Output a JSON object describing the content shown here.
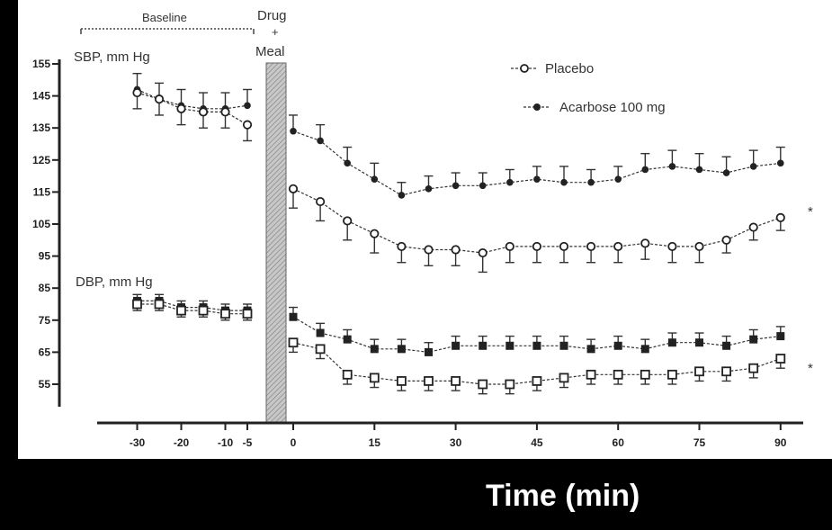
{
  "chart_data": {
    "type": "line",
    "title": "",
    "xlabel": "Time (min)",
    "ylabel": "",
    "x_ticks": [
      -30,
      -20,
      -10,
      -5,
      0,
      15,
      30,
      45,
      60,
      75,
      90
    ],
    "y_ticks": [
      55,
      65,
      75,
      85,
      95,
      105,
      115,
      125,
      135,
      145,
      155
    ],
    "ylim": [
      50,
      158
    ],
    "intervention_label_top": "Drug",
    "intervention_label_plus": "+",
    "intervention_label_bottom": "Meal",
    "baseline_label": "Baseline",
    "sbp_label": "SBP, mm Hg",
    "dbp_label": "DBP, mm Hg",
    "significance_marks": [
      "*",
      "*"
    ],
    "x": [
      -30,
      -25,
      -20,
      -15,
      -10,
      -5,
      0,
      5,
      10,
      15,
      20,
      25,
      30,
      35,
      40,
      45,
      50,
      55,
      60,
      65,
      70,
      75,
      80,
      85,
      90
    ],
    "series": [
      {
        "name": "Acarbose 100 mg",
        "group": "SBP",
        "marker": "filled-circle",
        "values": [
          147,
          144,
          142,
          141,
          141,
          142,
          134,
          131,
          124,
          119,
          114,
          116,
          117,
          117,
          118,
          119,
          118,
          118,
          119,
          122,
          123,
          122,
          121,
          123,
          124
        ],
        "errors": [
          5,
          5,
          5,
          5,
          5,
          5,
          5,
          5,
          5,
          5,
          4,
          4,
          4,
          4,
          4,
          4,
          5,
          4,
          4,
          5,
          5,
          5,
          5,
          5,
          5
        ]
      },
      {
        "name": "Placebo",
        "group": "SBP",
        "marker": "open-circle",
        "values": [
          146,
          144,
          141,
          140,
          140,
          136,
          116,
          112,
          106,
          102,
          98,
          97,
          97,
          96,
          98,
          98,
          98,
          98,
          98,
          99,
          98,
          98,
          100,
          104,
          107
        ],
        "errors": [
          5,
          5,
          5,
          5,
          5,
          5,
          6,
          6,
          6,
          6,
          5,
          5,
          5,
          6,
          5,
          5,
          5,
          5,
          5,
          5,
          5,
          5,
          4,
          4,
          4
        ]
      },
      {
        "name": "Acarbose 100 mg",
        "group": "DBP",
        "marker": "filled-square",
        "values": [
          81,
          81,
          79,
          79,
          78,
          78,
          76,
          71,
          69,
          66,
          66,
          65,
          67,
          67,
          67,
          67,
          67,
          66,
          67,
          66,
          68,
          68,
          67,
          69,
          70
        ],
        "errors": [
          2,
          2,
          2,
          2,
          2,
          2,
          3,
          3,
          3,
          3,
          3,
          3,
          3,
          3,
          3,
          3,
          3,
          3,
          3,
          3,
          3,
          3,
          3,
          3,
          3
        ]
      },
      {
        "name": "Placebo",
        "group": "DBP",
        "marker": "open-square",
        "values": [
          80,
          80,
          78,
          78,
          77,
          77,
          68,
          66,
          58,
          57,
          56,
          56,
          56,
          55,
          55,
          56,
          57,
          58,
          58,
          58,
          58,
          59,
          59,
          60,
          63
        ],
        "errors": [
          2,
          2,
          2,
          2,
          2,
          2,
          3,
          3,
          3,
          3,
          3,
          3,
          3,
          3,
          3,
          3,
          3,
          3,
          3,
          3,
          3,
          3,
          3,
          3,
          3
        ]
      }
    ],
    "legend": [
      {
        "name": "Placebo",
        "marker": "open-circle"
      },
      {
        "name": "Acarbose 100 mg",
        "marker": "filled-circle"
      }
    ],
    "legend_position": "top-right",
    "grid": false
  },
  "colors": {
    "background": "#000000",
    "panel": "#ffffff",
    "ink": "#222222",
    "bar_fill": "#bfbfbf",
    "axis_title": "#ffffff"
  }
}
